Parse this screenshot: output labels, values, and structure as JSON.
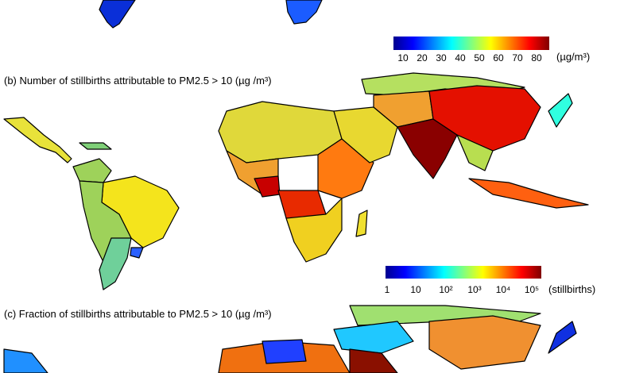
{
  "panel_a": {
    "colorbar": {
      "ticks": [
        "10",
        "20",
        "30",
        "40",
        "50",
        "60",
        "70",
        "80"
      ],
      "unit": "(µg/m³)"
    }
  },
  "panel_b": {
    "title": "(b) Number of stillbirths attributable to PM2.5 > 10 (µg /m³)",
    "colorbar": {
      "ticks": [
        "1",
        "10",
        "10²",
        "10³",
        "10⁴",
        "10⁵"
      ],
      "unit": "(stillbirths)"
    }
  },
  "panel_c": {
    "title": "(c) Fraction of stillbirths attributable to PM2.5 > 10 (µg /m³)"
  },
  "colors": {
    "low": "#00008f",
    "mid": "#ffff00",
    "high": "#800000"
  }
}
